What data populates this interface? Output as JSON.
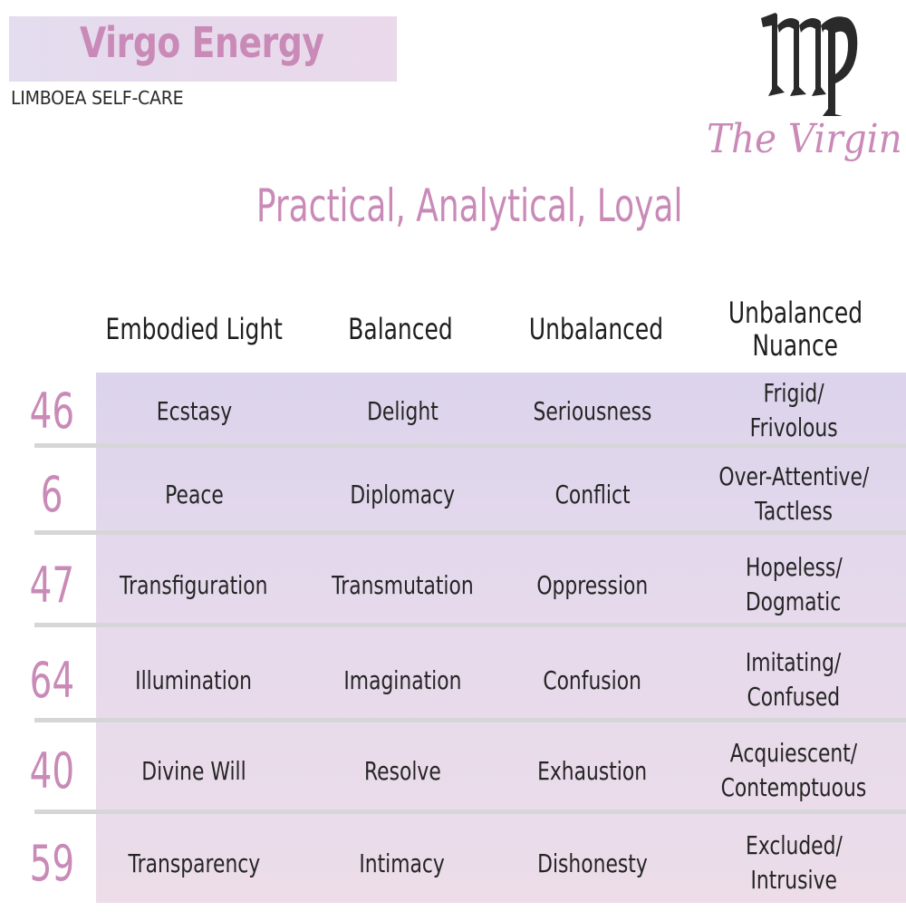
{
  "header": {
    "title": "Virgo Energy",
    "subtitle": "LIMBOEA SELF-CARE"
  },
  "sign": {
    "glyph_icon": "virgo-glyph-icon",
    "name": "The Virgin"
  },
  "traits": "Practical, Analytical, Loyal",
  "table": {
    "columns": [
      "Embodied Light",
      "Balanced",
      "Unbalanced",
      "Unbalanced\nNuance"
    ],
    "column_lines": [
      [
        "Embodied Light"
      ],
      [
        "Balanced"
      ],
      [
        "Unbalanced"
      ],
      [
        "Unbalanced",
        "Nuance"
      ]
    ],
    "rows": [
      {
        "number": "46",
        "embodied": "Ecstasy",
        "balanced": "Delight",
        "unbalanced": "Seriousness",
        "nuance_1": "Frigid/",
        "nuance_2": "Frivolous"
      },
      {
        "number": "6",
        "embodied": "Peace",
        "balanced": "Diplomacy",
        "unbalanced": "Conflict",
        "nuance_1": "Over-Attentive/",
        "nuance_2": "Tactless"
      },
      {
        "number": "47",
        "embodied": "Transfiguration",
        "balanced": "Transmutation",
        "unbalanced": "Oppression",
        "nuance_1": "Hopeless/",
        "nuance_2": "Dogmatic"
      },
      {
        "number": "64",
        "embodied": "Illumination",
        "balanced": "Imagination",
        "unbalanced": "Confusion",
        "nuance_1": "Imitating/",
        "nuance_2": "Confused"
      },
      {
        "number": "40",
        "embodied": "Divine Will",
        "balanced": "Resolve",
        "unbalanced": "Exhaustion",
        "nuance_1": "Acquiescent/",
        "nuance_2": "Contemptuous"
      },
      {
        "number": "59",
        "embodied": "Transparency",
        "balanced": "Intimacy",
        "unbalanced": "Dishonesty",
        "nuance_1": "Excluded/",
        "nuance_2": "Intrusive"
      }
    ]
  },
  "colors": {
    "accent": "#c98ab7",
    "text": "#1e1e1e",
    "table_top": "#dcd4ec",
    "table_bottom": "#ecdde9",
    "divider": "#d6d6d8"
  }
}
